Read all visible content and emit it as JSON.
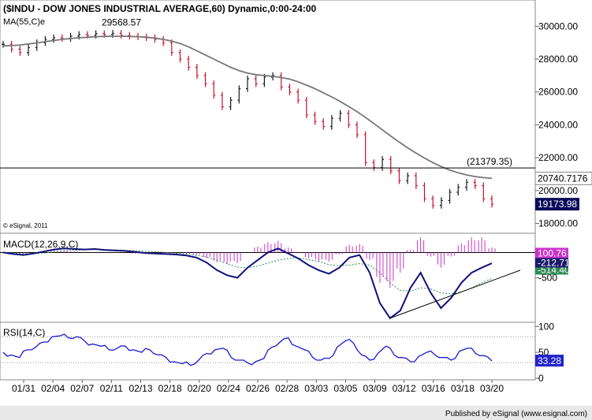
{
  "chart_data": [
    {
      "type": "bar",
      "panel": "price",
      "title": "($INDU - DOW JONES INDUSTRIAL AVERAGE,60) Dynamic,0:00-24:00",
      "indicator_label": "MA(55,C)e",
      "copyright": "© eSignal, 2011",
      "ylim": [
        17500,
        31500
      ],
      "yticks": [
        "30000.00",
        "28000.00",
        "26000.00",
        "24000.00",
        "22000.00",
        "20000.00",
        "18000.00"
      ],
      "ytick_values": [
        30000,
        28000,
        26000,
        24000,
        22000,
        20000,
        18000
      ],
      "xticks": [
        "01/31",
        "02/04",
        "02/07",
        "02/11",
        "02/13",
        "02/18",
        "02/20",
        "02/24",
        "02/26",
        "02/28",
        "03/03",
        "03/05",
        "03/09",
        "03/12",
        "03/16",
        "03/18",
        "03/20"
      ],
      "series": [
        {
          "name": "$INDU",
          "values": [
            28900,
            28600,
            28400,
            28700,
            29000,
            29200,
            29300,
            29250,
            29400,
            29500,
            29450,
            29550,
            29500,
            29568.57,
            29450,
            29400,
            29350,
            29300,
            29200,
            29000,
            28400,
            28000,
            27500,
            27000,
            26500,
            25800,
            25100,
            25500,
            26200,
            26800,
            26500,
            26900,
            27000,
            26300,
            26000,
            25500,
            24600,
            24200,
            23900,
            24400,
            24700,
            24000,
            23400,
            21700,
            21400,
            21900,
            21200,
            20600,
            20900,
            20300,
            19500,
            19100,
            19400,
            19900,
            20200,
            20500,
            20300,
            19500,
            19173.98
          ]
        },
        {
          "name": "MA(55,C)e",
          "values": [
            28800,
            28820,
            28860,
            28920,
            28990,
            29060,
            29130,
            29200,
            29250,
            29300,
            29330,
            29360,
            29380,
            29390,
            29390,
            29380,
            29360,
            29330,
            29280,
            29200,
            29100,
            28950,
            28750,
            28500,
            28250,
            28000,
            27750,
            27500,
            27300,
            27150,
            27050,
            27000,
            26950,
            26880,
            26780,
            26620,
            26420,
            26200,
            25950,
            25700,
            25420,
            25120,
            24800,
            24450,
            24080,
            23700,
            23320,
            22950,
            22600,
            22280,
            21980,
            21700,
            21460,
            21250,
            21080,
            20950,
            20850,
            20790,
            20740.7176
          ]
        }
      ],
      "annotations": [
        {
          "text": "29568.57",
          "x_index": 13,
          "value": 29568.57
        },
        {
          "text": "(21379.35)",
          "value": 21379.35,
          "kind": "horizontal line"
        }
      ],
      "value_labels": [
        "20740.7176",
        "19173.98"
      ],
      "grid": false
    },
    {
      "type": "line",
      "panel": "macd",
      "title": "MACD(12,26,9,C)",
      "ylim": [
        -1350,
        350
      ],
      "yticks": [
        "0",
        "-500"
      ],
      "ytick_values": [
        0,
        -500
      ],
      "series": [
        {
          "name": "MACD",
          "values": [
            0,
            -30,
            -50,
            -20,
            20,
            60,
            80,
            70,
            60,
            70,
            50,
            40,
            30,
            10,
            -10,
            -20,
            -30,
            -40,
            -60,
            -100,
            -200,
            -350,
            -450,
            -500,
            -300,
            -150,
            0,
            80,
            -20,
            -120,
            -250,
            -350,
            -420,
            -300,
            -100,
            -50,
            -400,
            -1000,
            -1300,
            -1150,
            -700,
            -400,
            -800,
            -1100,
            -900,
            -600,
            -400,
            -300,
            -212.71
          ]
        },
        {
          "name": "Signal",
          "values": [
            0,
            -10,
            -25,
            -20,
            -10,
            10,
            30,
            45,
            55,
            60,
            58,
            52,
            45,
            35,
            25,
            15,
            0,
            -15,
            -30,
            -55,
            -90,
            -150,
            -220,
            -290,
            -300,
            -270,
            -210,
            -150,
            -120,
            -110,
            -140,
            -180,
            -240,
            -260,
            -250,
            -220,
            -250,
            -400,
            -600,
            -750,
            -760,
            -700,
            -720,
            -800,
            -820,
            -780,
            -700,
            -600,
            -514
          ]
        },
        {
          "name": "Histogram",
          "values": [
            0,
            -20,
            -25,
            0,
            30,
            50,
            50,
            25,
            5,
            10,
            -8,
            -12,
            -15,
            -25,
            -35,
            -35,
            -30,
            -25,
            -30,
            -45,
            -110,
            -200,
            -230,
            -210,
            0,
            120,
            210,
            230,
            100,
            -10,
            -110,
            -170,
            -180,
            -40,
            150,
            170,
            -150,
            -600,
            -700,
            -400,
            60,
            300,
            -80,
            -300,
            -80,
            180,
            300,
            300,
            100.76
          ]
        }
      ],
      "value_labels": [
        "100.76",
        "-212.71",
        "-514.40"
      ],
      "annotations": [
        {
          "text": "trendline",
          "kind": "rising support line"
        }
      ]
    },
    {
      "type": "line",
      "panel": "rsi",
      "title": "RSI(14,C)",
      "ylim": [
        0,
        105
      ],
      "yticks": [
        "100",
        "50",
        "0"
      ],
      "ytick_values": [
        100,
        50,
        0
      ],
      "reference_lines": [
        80,
        30
      ],
      "series": [
        {
          "name": "RSI",
          "values": [
            50,
            45,
            40,
            55,
            60,
            70,
            80,
            82,
            78,
            80,
            72,
            66,
            62,
            55,
            58,
            62,
            55,
            50,
            55,
            45,
            40,
            32,
            28,
            25,
            35,
            48,
            55,
            58,
            40,
            35,
            30,
            32,
            38,
            60,
            70,
            78,
            62,
            55,
            40,
            35,
            38,
            60,
            72,
            68,
            45,
            35,
            48,
            62,
            45,
            40,
            32,
            42,
            50,
            45,
            40,
            35,
            52,
            58,
            48,
            44,
            33.28
          ]
        }
      ],
      "value_labels": [
        "33.28"
      ]
    }
  ],
  "footer": {
    "text": "Published by eSignal (www.esignal.com)"
  },
  "colors": {
    "price_up": "#1a1a1a",
    "price_down": "#c8102e",
    "ma": "#777777",
    "macd": "#10107a",
    "signal": "#2e8b57",
    "hist": "#cc33cc",
    "rsi": "#1a1ad0",
    "label_dark": "#0b0b5a"
  }
}
